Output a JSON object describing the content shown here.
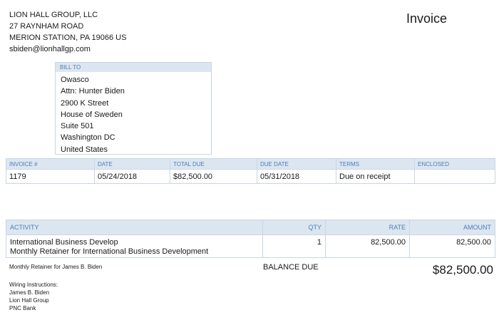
{
  "company": {
    "name": "LION HALL GROUP, LLC",
    "address1": "27 RAYNHAM ROAD",
    "address2": "MERION STATION, PA  19066 US",
    "email": "sbiden@lionhallgp.com"
  },
  "document_title": "Invoice",
  "bill_to": {
    "header": "BILL TO",
    "lines": [
      "Owasco",
      "Attn: Hunter Biden",
      "2900 K Street",
      "House of Sweden",
      "Suite 501",
      "Washington DC",
      "United States"
    ]
  },
  "invoice_info": {
    "headers": [
      "INVOICE #",
      "DATE",
      "TOTAL DUE",
      "DUE DATE",
      "TERMS",
      "ENCLOSED"
    ],
    "values": [
      "1179",
      "05/24/2018",
      "$82,500.00",
      "05/31/2018",
      "Due on receipt",
      ""
    ]
  },
  "activity": {
    "headers": {
      "activity": "ACTIVITY",
      "qty": "QTY",
      "rate": "RATE",
      "amount": "AMOUNT"
    },
    "rows": [
      {
        "name": "International Business Develop",
        "description": "Monthly Retainer for International Business Development",
        "qty": "1",
        "rate": "82,500.00",
        "amount": "82,500.00"
      }
    ]
  },
  "memo": "Monthly Retainer for James B. Biden",
  "balance": {
    "label": "BALANCE DUE",
    "value": "$82,500.00"
  },
  "wiring": {
    "title": "Wiring Instructions:",
    "lines": [
      "James B. Biden",
      "Lion Hall Group",
      "PNC Bank"
    ]
  }
}
